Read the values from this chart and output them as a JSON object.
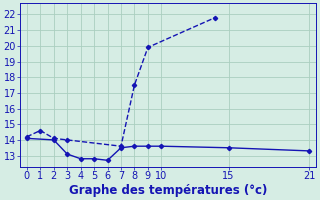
{
  "line_max_x": [
    0,
    1,
    2,
    3,
    7,
    8,
    9,
    14
  ],
  "line_max_y": [
    14.2,
    14.6,
    14.1,
    14.0,
    13.6,
    17.5,
    19.9,
    21.8
  ],
  "line_min_x": [
    0,
    2,
    3,
    4,
    5,
    6,
    7,
    8,
    9,
    10,
    15,
    21
  ],
  "line_min_y": [
    14.1,
    14.0,
    13.1,
    12.8,
    12.8,
    12.7,
    13.5,
    13.6,
    13.6,
    13.6,
    13.5,
    13.3
  ],
  "color": "#1414b4",
  "bg_color": "#d6ede4",
  "grid_color": "#aacfbf",
  "xlabel": "Graphe des températures (°c)",
  "xlim": [
    -0.5,
    21.5
  ],
  "ylim": [
    12.3,
    22.7
  ],
  "xticks": [
    0,
    1,
    2,
    3,
    4,
    5,
    6,
    7,
    8,
    9,
    10,
    15,
    21
  ],
  "yticks": [
    13,
    14,
    15,
    16,
    17,
    18,
    19,
    20,
    21,
    22
  ],
  "xlabel_fontsize": 8.5,
  "tick_fontsize": 7
}
